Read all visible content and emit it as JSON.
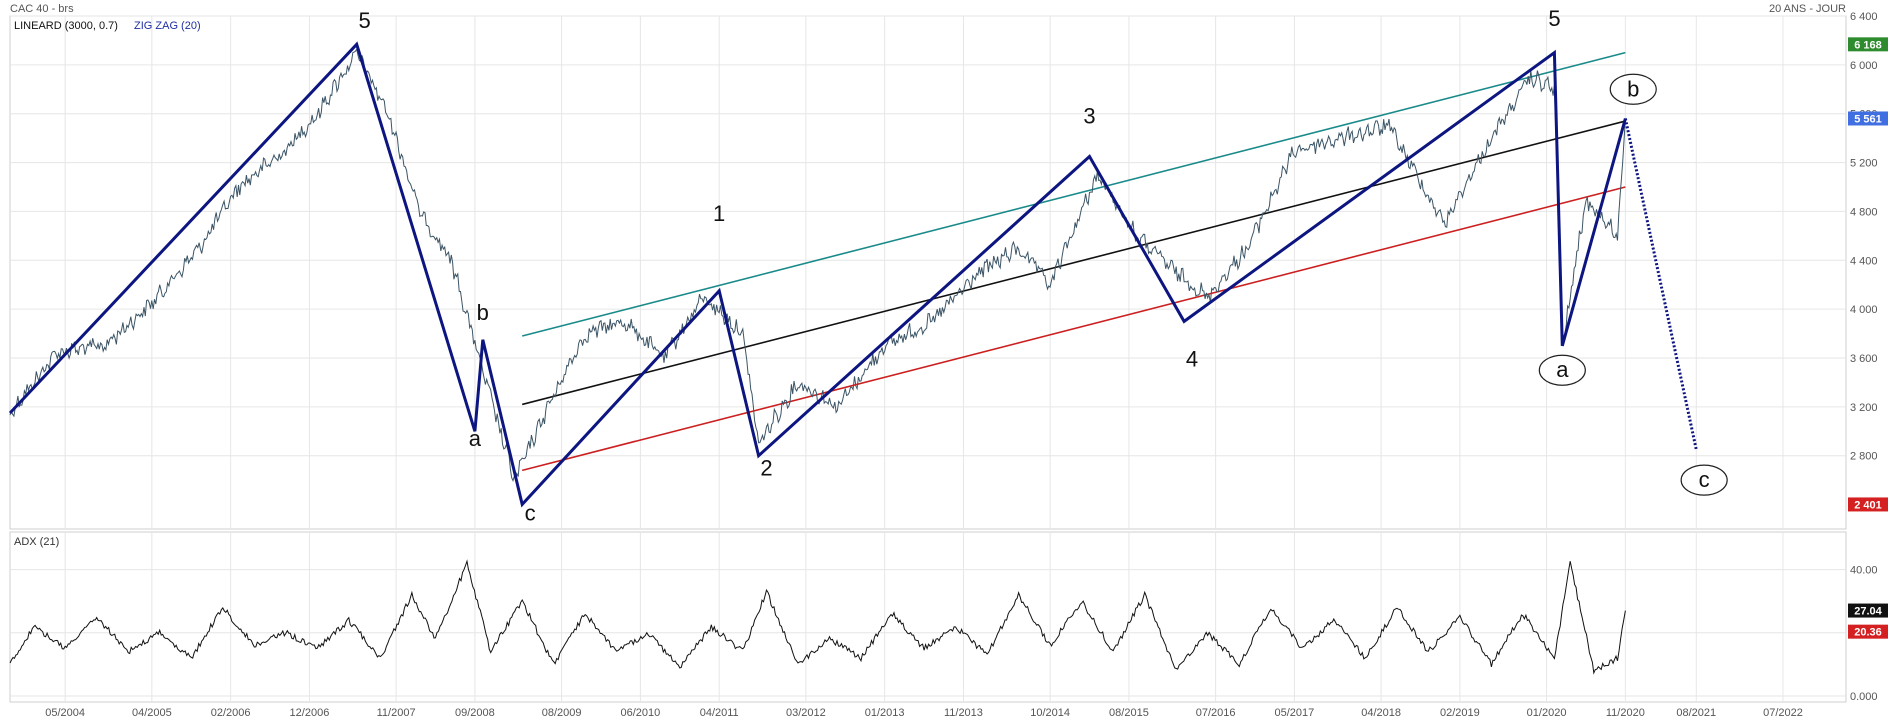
{
  "header": {
    "title": "CAC 40 - brs",
    "period": "20 ANS - JOUR"
  },
  "indicators": {
    "lineard": "LINEARD (3000, 0.7)",
    "zigzag": "ZIG ZAG (20)",
    "adx": "ADX (21)"
  },
  "colors": {
    "price": "#3c5566",
    "zigzag": "#0d1580",
    "channel_upper": "#1a8a8a",
    "channel_mid": "#111111",
    "channel_lower": "#cc1f1f",
    "badge_high": "#2e8b2e",
    "badge_last": "#3f6fe0",
    "badge_low": "#d42020",
    "badge_adx_black": "#111111",
    "badge_adx_red": "#d42020"
  },
  "chart_data": [
    {
      "type": "line",
      "title": "CAC 40 - brs",
      "x_ticks": [
        "05/2004",
        "04/2005",
        "02/2006",
        "12/2006",
        "11/2007",
        "09/2008",
        "08/2009",
        "06/2010",
        "04/2011",
        "03/2012",
        "01/2013",
        "11/2013",
        "10/2014",
        "08/2015",
        "07/2016",
        "05/2017",
        "04/2018",
        "02/2019",
        "01/2020",
        "11/2020",
        "08/2021",
        "07/2022"
      ],
      "y_ticks": [
        2800,
        3200,
        3600,
        4000,
        4400,
        4800,
        5200,
        5600,
        6000,
        6400
      ],
      "y_tick_labels": [
        "2 800",
        "3 200",
        "3 600",
        "4 000",
        "4 400",
        "4 800",
        "5 200",
        "5 600",
        "6 000",
        "6 400"
      ],
      "ylim": [
        2200,
        6400
      ],
      "x_range": [
        "2003-10",
        "2023-03"
      ],
      "series": [
        {
          "name": "CAC 40",
          "x": [
            "2003-10",
            "2004-04",
            "2004-10",
            "2005-04",
            "2005-10",
            "2006-03",
            "2006-09",
            "2007-01",
            "2007-06",
            "2007-10",
            "2008-02",
            "2008-06",
            "2008-10",
            "2009-02",
            "2009-07",
            "2009-11",
            "2010-04",
            "2010-09",
            "2011-02",
            "2011-07",
            "2011-09",
            "2012-02",
            "2012-07",
            "2013-01",
            "2013-07",
            "2014-01",
            "2014-06",
            "2014-10",
            "2015-04",
            "2015-09",
            "2016-02",
            "2016-06",
            "2016-11",
            "2017-05",
            "2017-11",
            "2018-05",
            "2018-12",
            "2019-06",
            "2019-11",
            "2020-02",
            "2020-03",
            "2020-06",
            "2020-10",
            "2020-11"
          ],
          "y": [
            3150,
            3650,
            3700,
            4050,
            4500,
            5000,
            5300,
            5600,
            6100,
            5600,
            4800,
            4400,
            3500,
            2600,
            3300,
            3800,
            3900,
            3600,
            4100,
            3800,
            2900,
            3400,
            3200,
            3700,
            3900,
            4300,
            4500,
            4200,
            5100,
            4600,
            4300,
            4100,
            4500,
            5300,
            5400,
            5500,
            4700,
            5400,
            5900,
            5800,
            3700,
            4900,
            4600,
            5561
          ]
        },
        {
          "name": "ZIG ZAG (20)",
          "x": [
            "2003-10",
            "2007-06",
            "2008-09",
            "2008-10",
            "2009-03",
            "2011-04",
            "2011-09",
            "2015-03",
            "2016-03",
            "2020-02",
            "2020-03",
            "2020-11"
          ],
          "y": [
            3150,
            6168,
            3000,
            3750,
            2401,
            4150,
            2800,
            5250,
            3900,
            6100,
            3700,
            5561
          ]
        },
        {
          "name": "Projection",
          "x": [
            "2020-11",
            "2021-08"
          ],
          "y": [
            5561,
            2850
          ]
        }
      ],
      "channel": {
        "name": "LINEARD (3000, 0.7)",
        "x": [
          "2009-03",
          "2020-11"
        ],
        "upper": [
          3780,
          6100
        ],
        "middle": [
          3220,
          5540
        ],
        "lower": [
          2680,
          5000
        ]
      },
      "wave_labels": [
        {
          "text": "5",
          "x": "2007-07",
          "y": 6300
        },
        {
          "text": "a",
          "x": "2008-09",
          "y": 2880
        },
        {
          "text": "b",
          "x": "2008-10",
          "y": 3910
        },
        {
          "text": "c",
          "x": "2009-04",
          "y": 2270
        },
        {
          "text": "1",
          "x": "2011-04",
          "y": 4720
        },
        {
          "text": "2",
          "x": "2011-10",
          "y": 2640
        },
        {
          "text": "3",
          "x": "2015-03",
          "y": 5520
        },
        {
          "text": "4",
          "x": "2016-04",
          "y": 3530
        },
        {
          "text": "5",
          "x": "2020-02",
          "y": 6320
        }
      ],
      "circled_labels": [
        {
          "text": "a",
          "x": "2020-03",
          "y": 3500
        },
        {
          "text": "b",
          "x": "2020-12",
          "y": 5800
        },
        {
          "text": "c",
          "x": "2021-09",
          "y": 2600
        }
      ],
      "badges": [
        {
          "text": "6 168",
          "value": 6168,
          "color": "#2e8b2e"
        },
        {
          "text": "5 561",
          "value": 5561,
          "color": "#3f6fe0"
        },
        {
          "text": "2 401",
          "value": 2401,
          "color": "#d42020"
        }
      ]
    },
    {
      "type": "line",
      "title": "ADX (21)",
      "ylim": [
        0,
        50
      ],
      "y_ticks": [
        0,
        20,
        40
      ],
      "y_tick_labels": [
        "0.000",
        "20.00",
        "40.00"
      ],
      "series": [
        {
          "name": "ADX (21)",
          "x": [
            "2003-10",
            "2004-01",
            "2004-05",
            "2004-09",
            "2005-01",
            "2005-05",
            "2005-09",
            "2006-01",
            "2006-05",
            "2006-09",
            "2007-01",
            "2007-05",
            "2007-09",
            "2008-01",
            "2008-04",
            "2008-08",
            "2008-11",
            "2009-03",
            "2009-07",
            "2009-11",
            "2010-03",
            "2010-07",
            "2010-11",
            "2011-03",
            "2011-07",
            "2011-10",
            "2012-02",
            "2012-06",
            "2012-10",
            "2013-02",
            "2013-06",
            "2013-10",
            "2014-02",
            "2014-06",
            "2014-10",
            "2015-02",
            "2015-06",
            "2015-10",
            "2016-02",
            "2016-06",
            "2016-10",
            "2017-02",
            "2017-06",
            "2017-10",
            "2018-02",
            "2018-06",
            "2018-10",
            "2019-02",
            "2019-06",
            "2019-10",
            "2020-02",
            "2020-04",
            "2020-07",
            "2020-10",
            "2020-11"
          ],
          "y": [
            10,
            22,
            15,
            25,
            14,
            20,
            12,
            28,
            16,
            20,
            15,
            24,
            12,
            32,
            18,
            42,
            14,
            30,
            10,
            26,
            14,
            20,
            9,
            22,
            14,
            33,
            10,
            18,
            12,
            26,
            15,
            22,
            13,
            32,
            16,
            30,
            14,
            32,
            8,
            20,
            10,
            28,
            15,
            24,
            12,
            28,
            14,
            25,
            10,
            26,
            12,
            42,
            8,
            12,
            27.04
          ]
        }
      ],
      "badges": [
        {
          "text": "27.04",
          "value": 27.04,
          "color": "#111111"
        },
        {
          "text": "20.36",
          "value": 20.36,
          "color": "#d42020"
        }
      ]
    }
  ]
}
